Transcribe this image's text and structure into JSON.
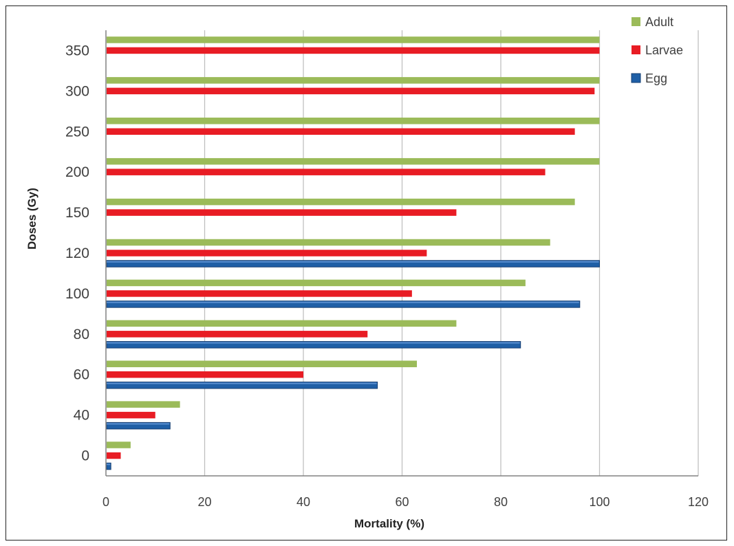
{
  "chart_data": {
    "type": "bar",
    "orientation": "horizontal",
    "categories": [
      "0",
      "40",
      "60",
      "80",
      "100",
      "120",
      "150",
      "200",
      "250",
      "300",
      "350"
    ],
    "series": [
      {
        "name": "Egg",
        "color": "#1f5fa6",
        "values": [
          1,
          13,
          55,
          84,
          96,
          100,
          null,
          null,
          null,
          null,
          null
        ]
      },
      {
        "name": "Larvae",
        "color": "#e81c24",
        "values": [
          3,
          10,
          40,
          53,
          62,
          65,
          71,
          89,
          95,
          99,
          100
        ]
      },
      {
        "name": "Adult",
        "color": "#9bbb59",
        "values": [
          5,
          15,
          63,
          71,
          85,
          90,
          95,
          100,
          100,
          100,
          100
        ]
      }
    ],
    "xlabel": "Mortality (%)",
    "ylabel": "Doses (Gy)",
    "xlim": [
      0,
      120
    ],
    "xticks": [
      "0",
      "20",
      "40",
      "60",
      "80",
      "100",
      "120"
    ],
    "grid": "vertical",
    "legend_position": "top-right",
    "legend_order": [
      "Adult",
      "Larvae",
      "Egg"
    ]
  }
}
